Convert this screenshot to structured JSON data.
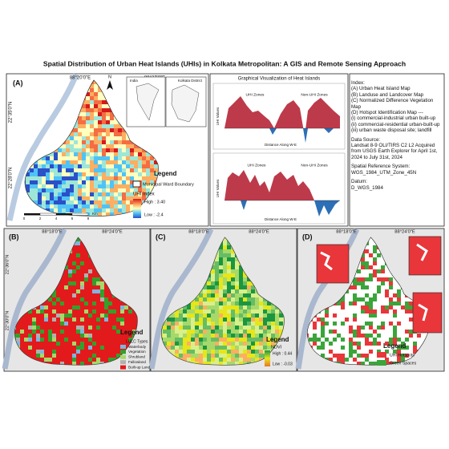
{
  "title": "Spatial Distribution of Urban Heat Islands (UHIs) in Kolkata Metropolitan: A GIS and Remote Sensing Approach",
  "panel_a": {
    "label": "(A)",
    "lon_ticks": [
      "88°20'0\"E",
      "88°27'0\"E"
    ],
    "lat_ticks": [
      "22°35'0\"N",
      "22°28'0\"N"
    ],
    "north": "N",
    "inset_labels": [
      "India",
      "Kolkata District"
    ],
    "legend_title": "Legend",
    "ward_boundary": "Municipal Ward Boundary",
    "index_title": "UHI Index",
    "high": "High : 3.40",
    "low": "Low : -2.4",
    "scale": [
      "0",
      "2",
      "4",
      "6",
      "8"
    ],
    "scale_unit": "Km"
  },
  "graphs": {
    "title": "Graphical Visualization of Heat Islands",
    "charts": [
      {
        "zones": [
          "UHI Zones",
          "Non-UHI Zones"
        ],
        "y_label": "UHI Values",
        "x_label": "Distance Along W-E"
      },
      {
        "zones": [
          "UHI Zones",
          "Non-UHI Zones"
        ],
        "y_label": "UHI Values",
        "x_label": "Distance Along W-E"
      }
    ]
  },
  "index": {
    "heading": "Index:",
    "items": [
      "(A) Urban Heat Island Map",
      "(B) Landuse and Landcover Map",
      "(C) Normalized Difference Vegetation Map",
      "(D) Hotspot Identification Map ---",
      "(i) commercial-industrial urban built-up",
      "(ii) commercial-residential urban-built-up",
      "(iii) urban waste disposal site; landfill"
    ]
  },
  "data_source": {
    "heading": "Data Source:",
    "text": "Landsat 8-9 OLI/TIRS C2 L2 Acquired from USGS Earth Explorer for April 1st, 2024 to July 31st, 2024"
  },
  "srs": {
    "heading": "Spatial Reference System:",
    "value": "WGS_1984_UTM_Zone_45N"
  },
  "datum": {
    "heading": "Datum:",
    "value": "D_WGS_1984"
  },
  "panel_b": {
    "label": "(B)",
    "lon_ticks": [
      "88°18'0\"E",
      "88°24'0\"E"
    ],
    "lat_ticks": [
      "22°36'0\"N",
      "22°30'0\"N"
    ],
    "legend_title": "Legend",
    "legend_subtitle": "LULC Types",
    "classes": [
      "Waterbody",
      "Vegetation",
      "Shrubland",
      "Fallowland",
      "Built-up Land"
    ]
  },
  "panel_c": {
    "label": "(C)",
    "lon_ticks": [
      "88°18'0\"E",
      "88°24'0\"E"
    ],
    "legend_title": "Legend",
    "index_title": "NDVI",
    "high": "High : 0.44",
    "low": "Low : -0.03"
  },
  "panel_d": {
    "label": "(D)",
    "lon_ticks": [
      "88°18'0\"E",
      "88°24'0\"E"
    ],
    "legend_title": "Legend",
    "classes": [
      "UHI Hotspots",
      "Green Spaces"
    ]
  }
}
